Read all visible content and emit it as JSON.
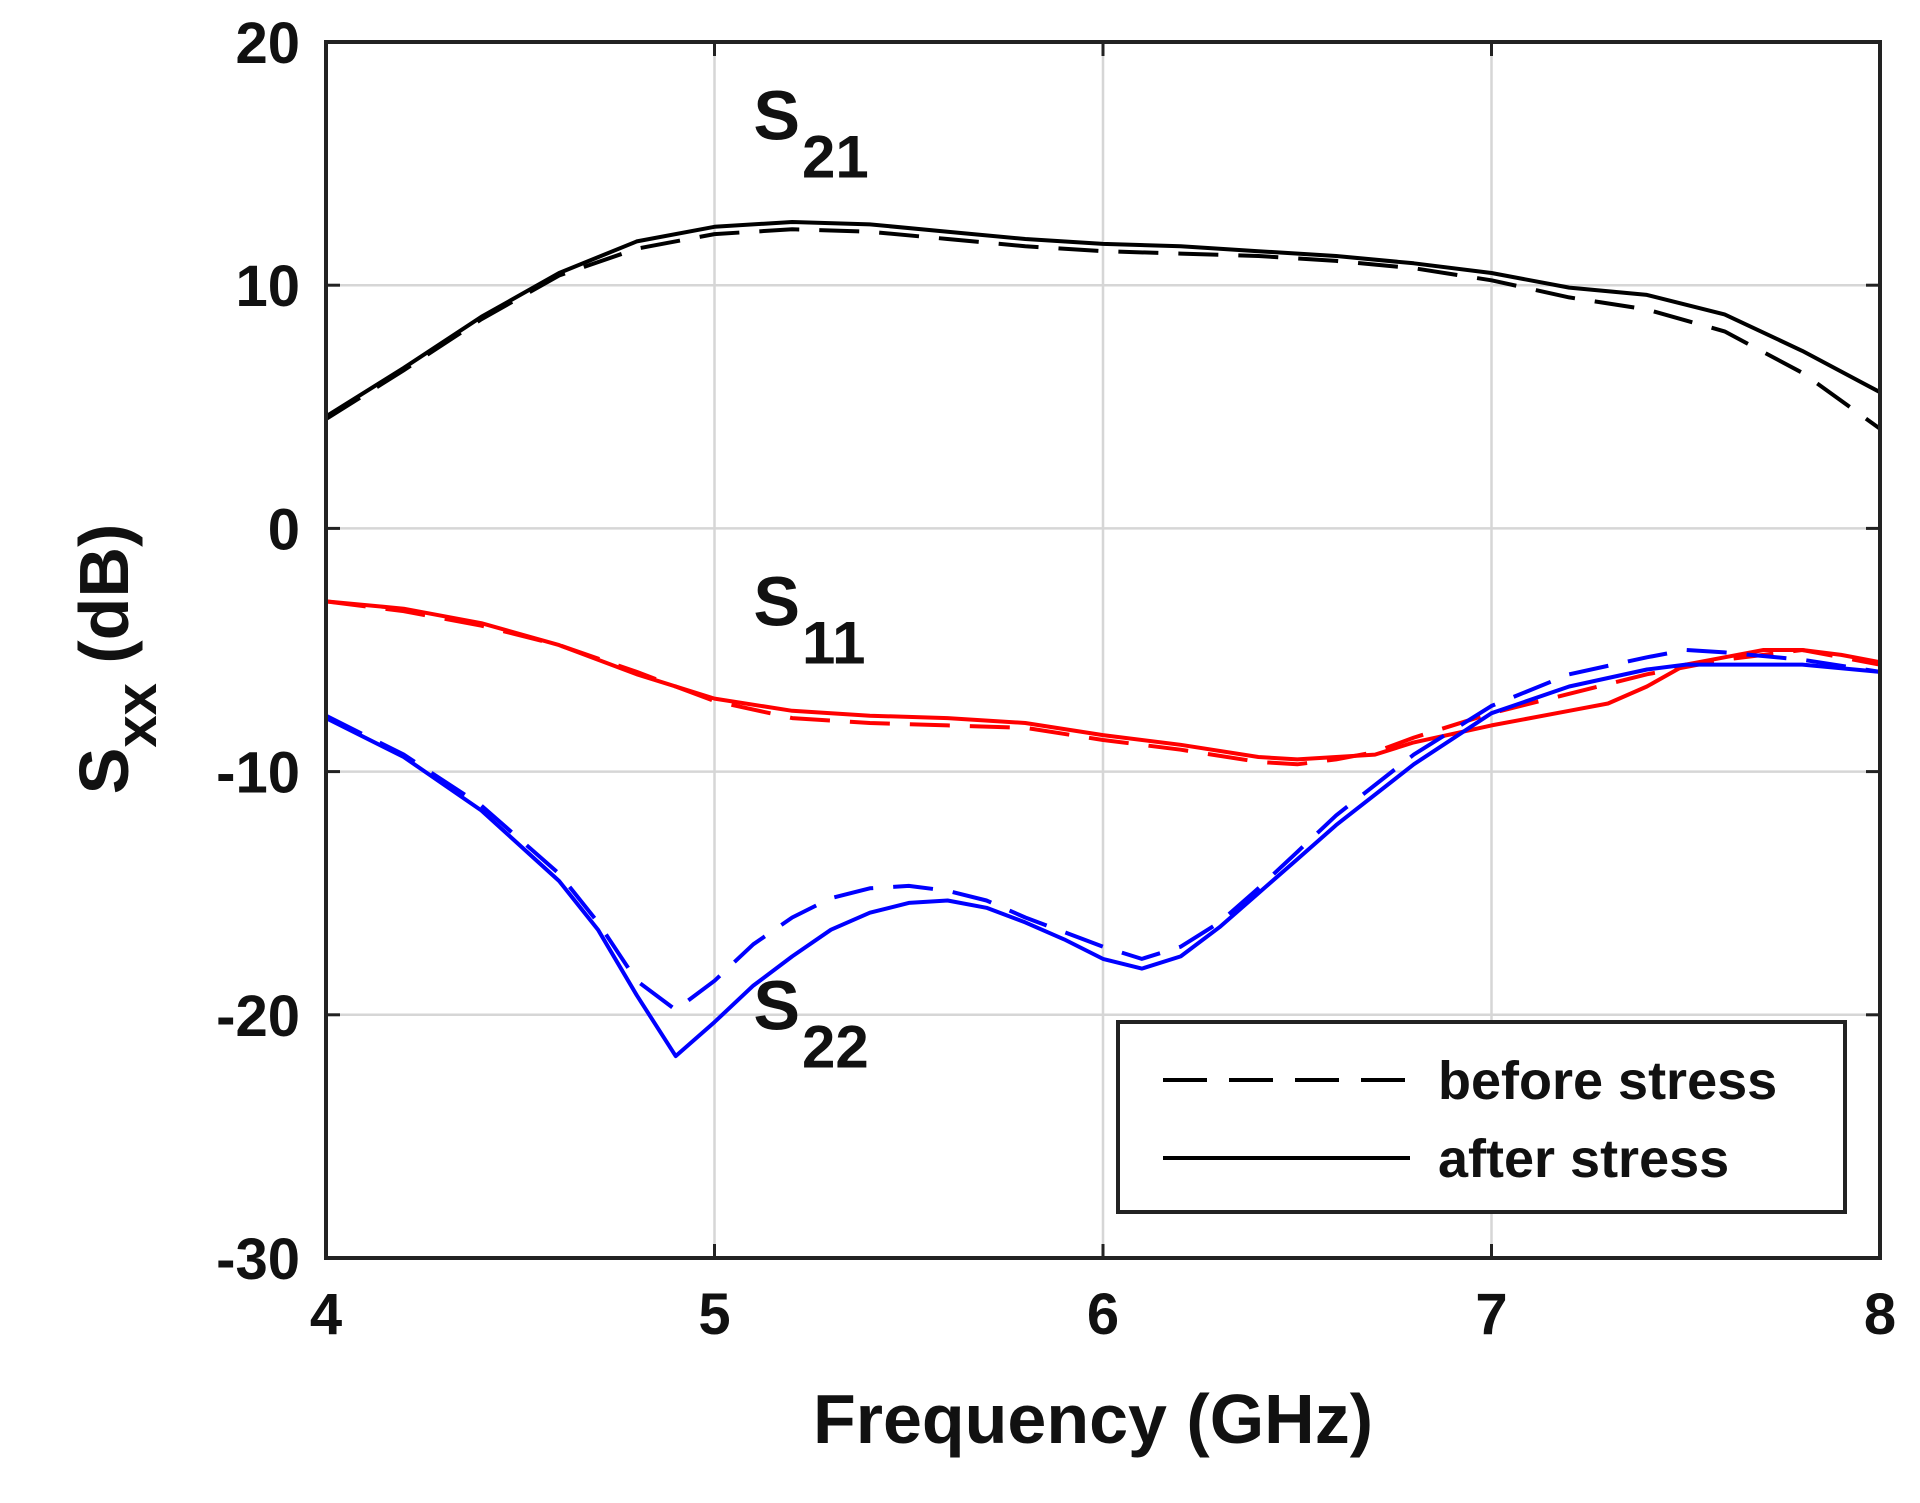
{
  "chart_data": {
    "type": "line",
    "xlabel": "Frequency (GHz)",
    "ylabel": {
      "main": "S",
      "sub": "xx",
      "unit": " (dB)"
    },
    "xlim": [
      4,
      8
    ],
    "ylim": [
      -30,
      20
    ],
    "xticks": [
      4,
      5,
      6,
      7,
      8
    ],
    "yticks": [
      -30,
      -20,
      -10,
      0,
      10,
      20
    ],
    "grid": true,
    "legend": {
      "position": "bottom-right",
      "entries": [
        {
          "label": "before stress",
          "style": "dashed"
        },
        {
          "label": "after stress",
          "style": "solid"
        }
      ]
    },
    "curve_labels": [
      {
        "main": "S",
        "sub": "21",
        "x": 5.1,
        "y": 16.0
      },
      {
        "main": "S",
        "sub": "11",
        "x": 5.1,
        "y": -4.0
      },
      {
        "main": "S",
        "sub": "22",
        "x": 5.1,
        "y": -20.6
      }
    ],
    "series": [
      {
        "color": "#000000",
        "style": "solid",
        "x": [
          4.0,
          4.2,
          4.4,
          4.6,
          4.8,
          5.0,
          5.2,
          5.4,
          5.6,
          5.8,
          6.0,
          6.2,
          6.4,
          6.6,
          6.8,
          7.0,
          7.2,
          7.4,
          7.6,
          7.8,
          8.0
        ],
        "y": [
          4.6,
          6.6,
          8.7,
          10.5,
          11.8,
          12.4,
          12.6,
          12.5,
          12.2,
          11.9,
          11.7,
          11.6,
          11.4,
          11.2,
          10.9,
          10.5,
          9.9,
          9.6,
          8.8,
          7.3,
          5.6
        ]
      },
      {
        "color": "#000000",
        "style": "dashed",
        "x": [
          4.0,
          4.2,
          4.4,
          4.6,
          4.8,
          5.0,
          5.2,
          5.4,
          5.6,
          5.8,
          6.0,
          6.2,
          6.4,
          6.6,
          6.8,
          7.0,
          7.2,
          7.4,
          7.6,
          7.8,
          8.0
        ],
        "y": [
          4.5,
          6.5,
          8.6,
          10.4,
          11.5,
          12.1,
          12.3,
          12.2,
          11.9,
          11.6,
          11.4,
          11.3,
          11.2,
          11.0,
          10.7,
          10.2,
          9.5,
          9.0,
          8.1,
          6.4,
          4.1
        ]
      },
      {
        "color": "#ff0000",
        "style": "solid",
        "x": [
          4.0,
          4.2,
          4.4,
          4.6,
          4.8,
          5.0,
          5.2,
          5.4,
          5.6,
          5.8,
          6.0,
          6.2,
          6.4,
          6.5,
          6.6,
          6.7,
          6.8,
          7.0,
          7.2,
          7.3,
          7.4,
          7.5,
          7.6,
          7.7,
          7.8,
          7.9,
          8.0
        ],
        "y": [
          -3.0,
          -3.3,
          -3.9,
          -4.8,
          -6.0,
          -7.0,
          -7.5,
          -7.7,
          -7.8,
          -8.0,
          -8.5,
          -8.9,
          -9.4,
          -9.5,
          -9.4,
          -9.3,
          -8.8,
          -8.1,
          -7.5,
          -7.2,
          -6.5,
          -5.6,
          -5.3,
          -5.0,
          -5.0,
          -5.2,
          -5.5
        ]
      },
      {
        "color": "#ff0000",
        "style": "dashed",
        "x": [
          4.0,
          4.2,
          4.4,
          4.6,
          4.8,
          5.0,
          5.2,
          5.4,
          5.6,
          5.8,
          6.0,
          6.2,
          6.4,
          6.5,
          6.6,
          6.7,
          6.8,
          7.0,
          7.2,
          7.4,
          7.6,
          7.8,
          8.0
        ],
        "y": [
          -3.0,
          -3.4,
          -4.0,
          -4.8,
          -5.9,
          -7.1,
          -7.8,
          -8.0,
          -8.1,
          -8.2,
          -8.7,
          -9.1,
          -9.6,
          -9.7,
          -9.5,
          -9.2,
          -8.6,
          -7.6,
          -6.8,
          -6.0,
          -5.4,
          -5.0,
          -5.6
        ]
      },
      {
        "color": "#0000ff",
        "style": "solid",
        "x": [
          4.0,
          4.2,
          4.4,
          4.6,
          4.7,
          4.8,
          4.9,
          5.0,
          5.1,
          5.2,
          5.3,
          5.4,
          5.5,
          5.6,
          5.7,
          5.8,
          5.9,
          6.0,
          6.1,
          6.2,
          6.3,
          6.4,
          6.5,
          6.6,
          6.8,
          7.0,
          7.2,
          7.4,
          7.5,
          7.6,
          7.8,
          8.0
        ],
        "y": [
          -7.8,
          -9.4,
          -11.6,
          -14.5,
          -16.5,
          -19.2,
          -21.7,
          -20.3,
          -18.8,
          -17.6,
          -16.5,
          -15.8,
          -15.4,
          -15.3,
          -15.6,
          -16.2,
          -16.9,
          -17.7,
          -18.1,
          -17.6,
          -16.4,
          -15.0,
          -13.6,
          -12.2,
          -9.7,
          -7.6,
          -6.5,
          -5.8,
          -5.6,
          -5.6,
          -5.6,
          -5.9
        ]
      },
      {
        "color": "#0000ff",
        "style": "dashed",
        "x": [
          4.0,
          4.2,
          4.4,
          4.6,
          4.7,
          4.8,
          4.9,
          5.0,
          5.1,
          5.2,
          5.3,
          5.4,
          5.5,
          5.6,
          5.7,
          5.8,
          5.9,
          6.0,
          6.1,
          6.2,
          6.3,
          6.4,
          6.5,
          6.6,
          6.8,
          7.0,
          7.2,
          7.4,
          7.5,
          7.6,
          7.8,
          8.0
        ],
        "y": [
          -7.7,
          -9.3,
          -11.4,
          -14.2,
          -16.2,
          -18.6,
          -19.8,
          -18.6,
          -17.1,
          -16.0,
          -15.2,
          -14.8,
          -14.7,
          -14.9,
          -15.3,
          -16.0,
          -16.6,
          -17.2,
          -17.7,
          -17.2,
          -16.2,
          -14.8,
          -13.3,
          -11.8,
          -9.3,
          -7.3,
          -6.0,
          -5.3,
          -5.0,
          -5.1,
          -5.4,
          -5.9
        ]
      }
    ]
  }
}
